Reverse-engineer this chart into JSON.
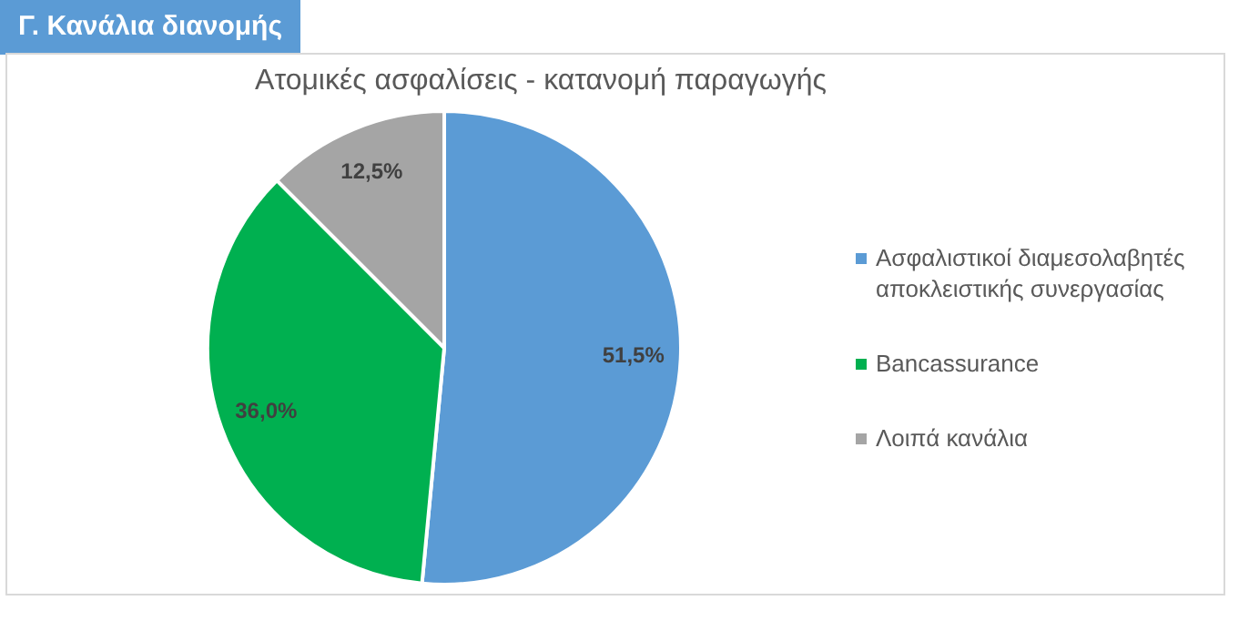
{
  "chart_data": {
    "type": "pie",
    "title": "Ατομικές ασφαλίσεις - κατανομή παραγωγής",
    "annotations": [
      "Γ. Κανάλια διανομής"
    ],
    "categories": [
      "Ασφαλιστικοί διαμεσολαβητές αποκλειστικής συνεργασίας",
      "Bancassurance",
      "Λοιπά κανάλια"
    ],
    "values": [
      51.5,
      36.0,
      12.5
    ],
    "colors": [
      "#5b9bd5",
      "#00b050",
      "#a5a5a5"
    ],
    "value_labels": [
      "51,5%",
      "36,0%",
      "12,5%"
    ],
    "legend": "right"
  }
}
